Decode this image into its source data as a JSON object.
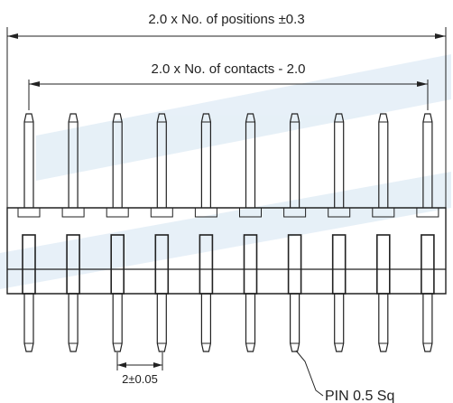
{
  "dimensions": {
    "overall_width": "2.0 x No. of positions ±0.3",
    "contact_span": "2.0 x No. of contacts - 2.0",
    "pitch": "2±0.05",
    "pin_size": "PIN 0.5 Sq"
  },
  "pin_count": 10,
  "colors": {
    "line": "#222222",
    "watermark": "#d3e4f2"
  }
}
